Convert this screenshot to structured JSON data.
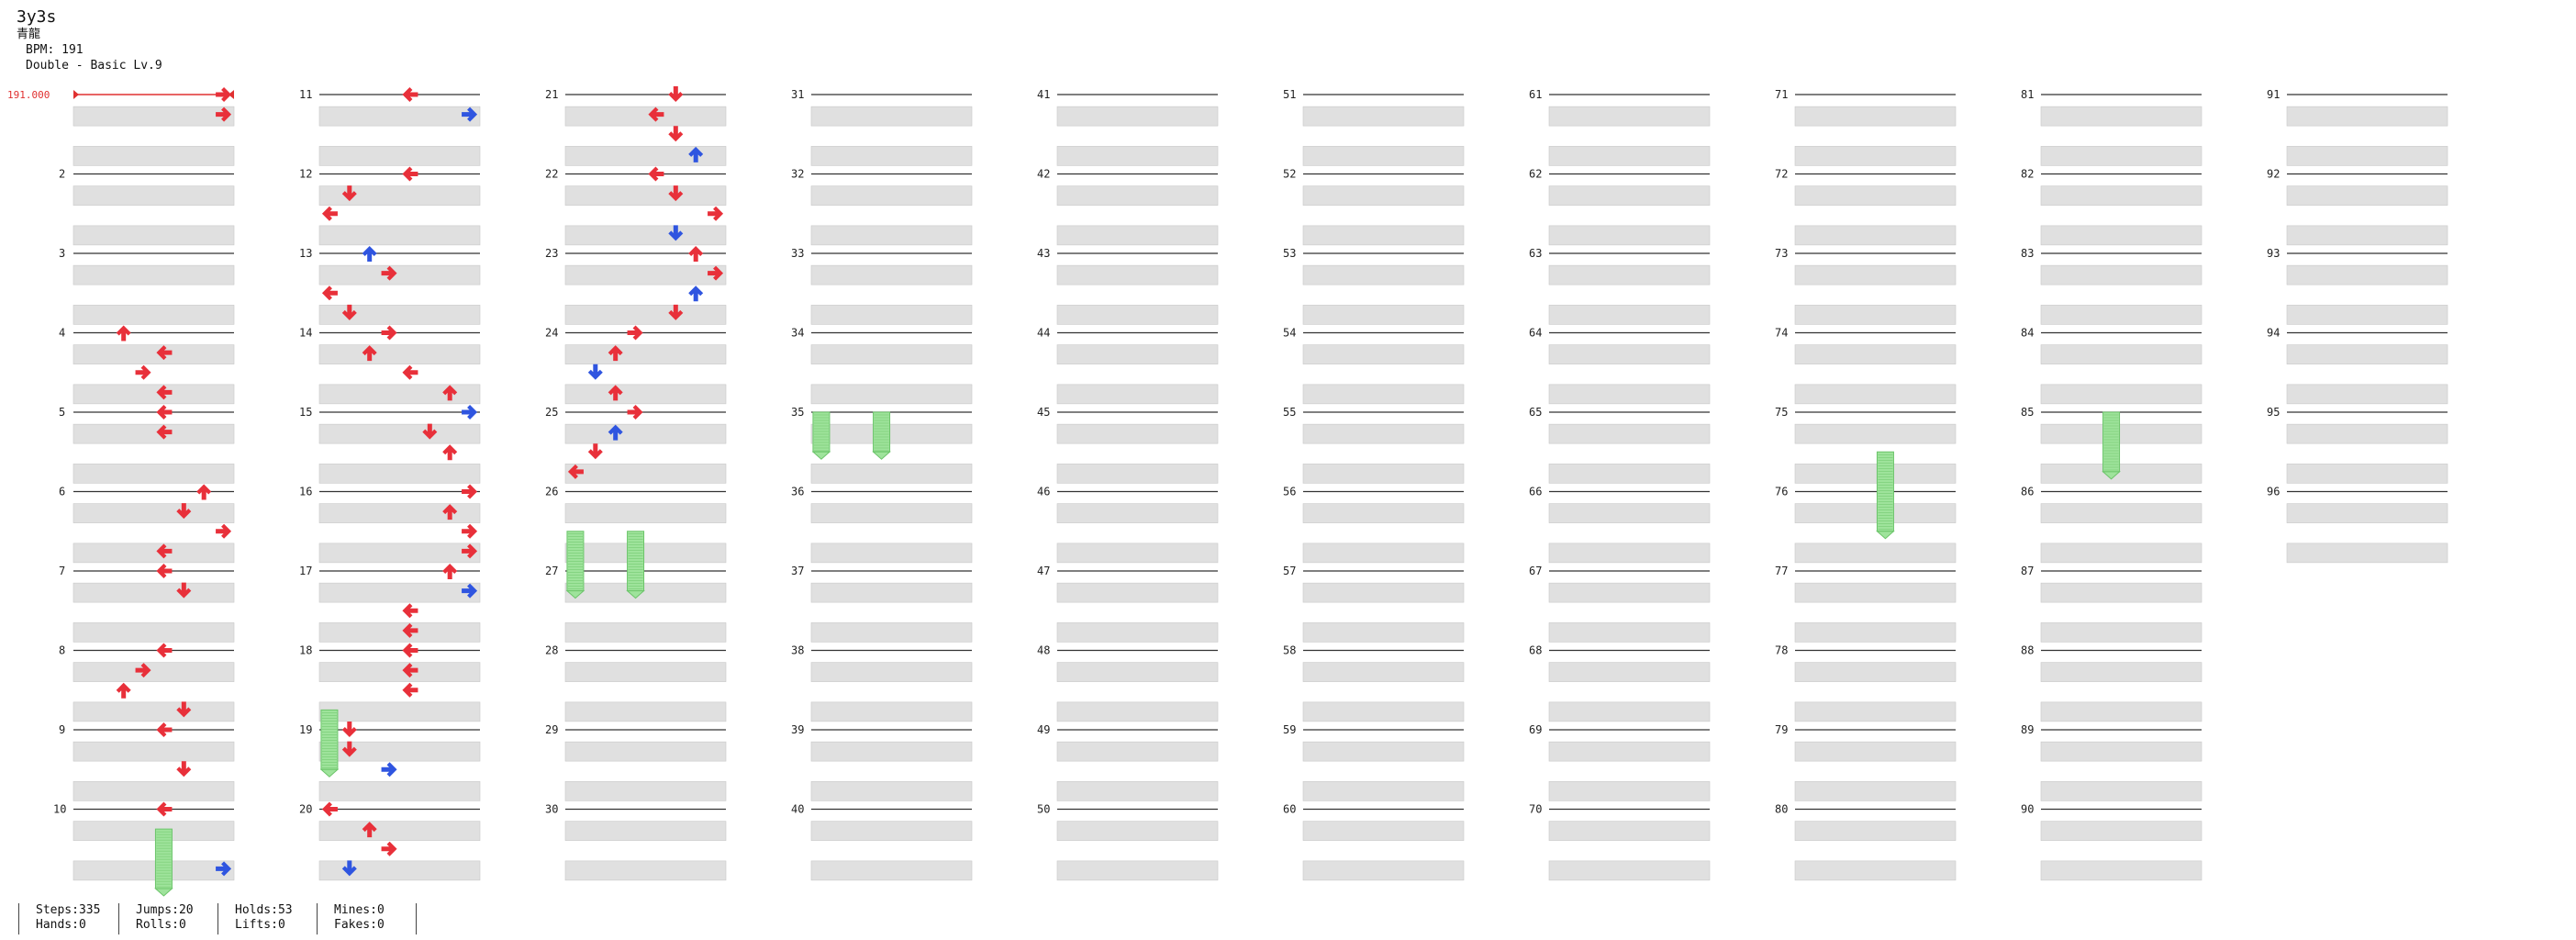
{
  "song": {
    "title": "3y3s",
    "artist": "青龍"
  },
  "bpm_text": "BPM: 191",
  "difficulty_text": "Double - Basic Lv.9",
  "bpm_marker": "191.000",
  "measure_labels": [
    "2",
    "3",
    "4",
    "5",
    "6",
    "7",
    "8",
    "9",
    "10",
    "11",
    "12",
    "13",
    "14",
    "15",
    "16",
    "17",
    "18",
    "19",
    "20",
    "21",
    "22",
    "23",
    "24",
    "25",
    "26",
    "27",
    "28",
    "29",
    "30",
    "31",
    "32",
    "33",
    "34",
    "35",
    "36",
    "37",
    "38",
    "39",
    "40",
    "41",
    "42",
    "43",
    "44",
    "45",
    "46",
    "47",
    "48",
    "49",
    "50",
    "51",
    "52",
    "53",
    "54",
    "55",
    "56",
    "57",
    "58",
    "59",
    "60",
    "61",
    "62",
    "63",
    "64",
    "65",
    "66",
    "67",
    "68",
    "69",
    "70",
    "71",
    "72",
    "73",
    "74",
    "75",
    "76",
    "77",
    "78",
    "79",
    "80",
    "81",
    "82",
    "83",
    "84",
    "85",
    "86",
    "87",
    "88",
    "89",
    "90",
    "91",
    "92",
    "93",
    "94",
    "95",
    "96"
  ],
  "stats": [
    [
      "Steps:335",
      "Hands:0"
    ],
    [
      "Jumps:20",
      "Rolls:0"
    ],
    [
      "Holds:53",
      "Lifts:0"
    ],
    [
      "Mines:0",
      "Fakes:0"
    ]
  ],
  "colors": {
    "arrow_red": "#e8303a",
    "arrow_blue": "#2f55e0",
    "hold_green": "#9ee39b",
    "hold_stripe": "#6cc46a",
    "row_gray": "#e0e0e0",
    "measure_line": "#333333",
    "bpm_red": "#e03030"
  },
  "notes": [
    {
      "m": 1,
      "b": 0,
      "lane": 7,
      "color": "red"
    },
    {
      "m": 1,
      "b": 1,
      "lane": 7,
      "color": "red"
    },
    {
      "m": 4,
      "b": 0,
      "lane": 2,
      "color": "red"
    },
    {
      "m": 4,
      "b": 1,
      "lane": 4,
      "color": "red"
    },
    {
      "m": 4,
      "b": 2,
      "lane": 3,
      "color": "red"
    },
    {
      "m": 4,
      "b": 3,
      "lane": 4,
      "color": "red"
    },
    {
      "m": 5,
      "b": 0,
      "lane": 4,
      "color": "red"
    },
    {
      "m": 5,
      "b": 1,
      "lane": 4,
      "color": "red"
    },
    {
      "m": 6,
      "b": 0,
      "lane": 6,
      "color": "red"
    },
    {
      "m": 6,
      "b": 1,
      "lane": 5,
      "color": "red"
    },
    {
      "m": 6,
      "b": 2,
      "lane": 7,
      "color": "red"
    },
    {
      "m": 6,
      "b": 3,
      "lane": 4,
      "color": "red"
    },
    {
      "m": 7,
      "b": 0,
      "lane": 4,
      "color": "red"
    },
    {
      "m": 7,
      "b": 1,
      "lane": 5,
      "color": "red"
    },
    {
      "m": 8,
      "b": 0,
      "lane": 4,
      "color": "red"
    },
    {
      "m": 8,
      "b": 1,
      "lane": 3,
      "color": "red"
    },
    {
      "m": 8,
      "b": 2,
      "lane": 2,
      "color": "red"
    },
    {
      "m": 8,
      "b": 3,
      "lane": 5,
      "color": "red"
    },
    {
      "m": 9,
      "b": 0,
      "lane": 4,
      "color": "red"
    },
    {
      "m": 9,
      "b": 2,
      "lane": 5,
      "color": "red"
    },
    {
      "m": 10,
      "b": 0,
      "lane": 4,
      "color": "red"
    },
    {
      "m": 10,
      "b": 3,
      "lane": 7,
      "color": "blue"
    },
    {
      "m": 11,
      "b": 0,
      "lane": 4,
      "color": "red"
    },
    {
      "m": 11,
      "b": 1,
      "lane": 7,
      "color": "blue"
    },
    {
      "m": 12,
      "b": 0,
      "lane": 4,
      "color": "red"
    },
    {
      "m": 12,
      "b": 1,
      "lane": 1,
      "color": "red"
    },
    {
      "m": 12,
      "b": 2,
      "lane": 0,
      "color": "red"
    },
    {
      "m": 13,
      "b": 0,
      "lane": 2,
      "color": "blue"
    },
    {
      "m": 13,
      "b": 1,
      "lane": 3,
      "color": "red"
    },
    {
      "m": 13,
      "b": 2,
      "lane": 0,
      "color": "red"
    },
    {
      "m": 13,
      "b": 3,
      "lane": 1,
      "color": "red"
    },
    {
      "m": 14,
      "b": 0,
      "lane": 3,
      "color": "red"
    },
    {
      "m": 14,
      "b": 1,
      "lane": 2,
      "color": "red"
    },
    {
      "m": 14,
      "b": 2,
      "lane": 4,
      "color": "red"
    },
    {
      "m": 14,
      "b": 3,
      "lane": 6,
      "color": "red"
    },
    {
      "m": 15,
      "b": 0,
      "lane": 7,
      "color": "blue"
    },
    {
      "m": 15,
      "b": 1,
      "lane": 5,
      "color": "red"
    },
    {
      "m": 15,
      "b": 2,
      "lane": 6,
      "color": "red"
    },
    {
      "m": 16,
      "b": 0,
      "lane": 7,
      "color": "red"
    },
    {
      "m": 16,
      "b": 1,
      "lane": 6,
      "color": "red"
    },
    {
      "m": 16,
      "b": 2,
      "lane": 7,
      "color": "red"
    },
    {
      "m": 16,
      "b": 3,
      "lane": 7,
      "color": "red"
    },
    {
      "m": 17,
      "b": 0,
      "lane": 6,
      "color": "red"
    },
    {
      "m": 17,
      "b": 1,
      "lane": 7,
      "color": "blue"
    },
    {
      "m": 17,
      "b": 2,
      "lane": 4,
      "color": "red"
    },
    {
      "m": 17,
      "b": 3,
      "lane": 4,
      "color": "red"
    },
    {
      "m": 18,
      "b": 0,
      "lane": 4,
      "color": "red"
    },
    {
      "m": 18,
      "b": 1,
      "lane": 4,
      "color": "red"
    },
    {
      "m": 18,
      "b": 2,
      "lane": 4,
      "color": "red"
    },
    {
      "m": 19,
      "b": 0,
      "lane": 1,
      "color": "red"
    },
    {
      "m": 19,
      "b": 1,
      "lane": 1,
      "color": "red"
    },
    {
      "m": 19,
      "b": 2,
      "lane": 3,
      "color": "blue"
    },
    {
      "m": 20,
      "b": 0,
      "lane": 0,
      "color": "red"
    },
    {
      "m": 20,
      "b": 1,
      "lane": 2,
      "color": "red"
    },
    {
      "m": 20,
      "b": 2,
      "lane": 3,
      "color": "red"
    },
    {
      "m": 20,
      "b": 3,
      "lane": 1,
      "color": "blue"
    },
    {
      "m": 21,
      "b": 0,
      "lane": 5,
      "color": "red"
    },
    {
      "m": 21,
      "b": 1,
      "lane": 4,
      "color": "red"
    },
    {
      "m": 21,
      "b": 2,
      "lane": 5,
      "color": "red"
    },
    {
      "m": 21,
      "b": 3,
      "lane": 6,
      "color": "blue"
    },
    {
      "m": 22,
      "b": 0,
      "lane": 4,
      "color": "red"
    },
    {
      "m": 22,
      "b": 1,
      "lane": 5,
      "color": "red"
    },
    {
      "m": 22,
      "b": 2,
      "lane": 7,
      "color": "red"
    },
    {
      "m": 22,
      "b": 3,
      "lane": 5,
      "color": "blue"
    },
    {
      "m": 23,
      "b": 0,
      "lane": 6,
      "color": "red"
    },
    {
      "m": 23,
      "b": 1,
      "lane": 7,
      "color": "red"
    },
    {
      "m": 23,
      "b": 2,
      "lane": 6,
      "color": "blue"
    },
    {
      "m": 23,
      "b": 3,
      "lane": 5,
      "color": "red"
    },
    {
      "m": 24,
      "b": 0,
      "lane": 3,
      "color": "red"
    },
    {
      "m": 24,
      "b": 1,
      "lane": 2,
      "color": "red"
    },
    {
      "m": 24,
      "b": 2,
      "lane": 1,
      "color": "blue"
    },
    {
      "m": 24,
      "b": 3,
      "lane": 2,
      "color": "red"
    },
    {
      "m": 25,
      "b": 0,
      "lane": 3,
      "color": "red"
    },
    {
      "m": 25,
      "b": 1,
      "lane": 2,
      "color": "blue"
    },
    {
      "m": 25,
      "b": 2,
      "lane": 1,
      "color": "red"
    },
    {
      "m": 25,
      "b": 3,
      "lane": 0,
      "color": "red"
    }
  ],
  "holds": [
    {
      "m": 10,
      "b": 1,
      "len": 3,
      "lane": 4
    },
    {
      "m": 18,
      "b": 3,
      "len": 3,
      "lane": 0
    },
    {
      "m": 26,
      "b": 2,
      "len": 3,
      "lane": 0
    },
    {
      "m": 26,
      "b": 2,
      "len": 3,
      "lane": 3
    },
    {
      "m": 35,
      "b": 0,
      "len": 2,
      "lane": 0
    },
    {
      "m": 35,
      "b": 0,
      "len": 2,
      "lane": 3
    },
    {
      "m": 75,
      "b": 2,
      "len": 4,
      "lane": 4
    },
    {
      "m": 85,
      "b": 0,
      "len": 3,
      "lane": 3
    }
  ]
}
